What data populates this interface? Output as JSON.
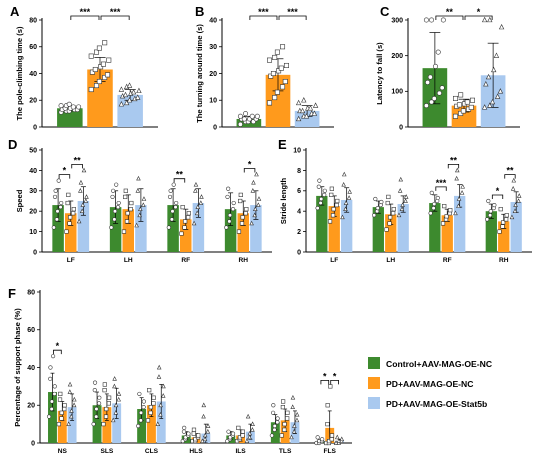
{
  "colors": {
    "control": "#3d8a2e",
    "pd": "#ff9a1c",
    "stat5b": "#a9c9ef"
  },
  "legend": [
    {
      "label": "Control+AAV-MAG-OE-NC",
      "color": "#3d8a2e"
    },
    {
      "label": "PD+AAV-MAG-OE-NC",
      "color": "#ff9a1c"
    },
    {
      "label": "PD+AAV-MAG-OE-Stat5b",
      "color": "#a9c9ef"
    }
  ],
  "chart_data": [
    {
      "panel": "A",
      "type": "bar",
      "ylabel": "The pole-climbing time (s)",
      "ylim": [
        0,
        80
      ],
      "yticks": [
        0,
        20,
        40,
        60,
        80
      ],
      "categories": [
        ""
      ],
      "series": [
        {
          "name": "Control+AAV-MAG-OE-NC",
          "values": [
            14
          ],
          "errors": [
            2
          ],
          "points": [
            [
              11,
              12,
              12,
              13,
              13,
              13,
              14,
              14,
              15,
              15,
              16,
              16,
              17
            ]
          ]
        },
        {
          "name": "PD+AAV-MAG-OE-NC",
          "values": [
            43
          ],
          "errors": [
            9
          ],
          "points": [
            [
              28,
              31,
              34,
              37,
              39,
              41,
              43,
              45,
              47,
              50,
              53,
              56,
              59,
              63
            ]
          ]
        },
        {
          "name": "PD+AAV-MAG-OE-Stat5b",
          "values": [
            24
          ],
          "errors": [
            4
          ],
          "points": [
            [
              17,
              18,
              20,
              21,
              22,
              23,
              24,
              25,
              26,
              27,
              28,
              30,
              31
            ]
          ]
        }
      ],
      "significance": [
        {
          "pair": [
            0,
            1
          ],
          "label": "***"
        },
        {
          "pair": [
            1,
            2
          ],
          "label": "***"
        }
      ]
    },
    {
      "panel": "B",
      "type": "bar",
      "ylabel": "The turning around time (s)",
      "ylim": [
        0,
        40
      ],
      "yticks": [
        0,
        10,
        20,
        30,
        40
      ],
      "categories": [
        ""
      ],
      "series": [
        {
          "name": "Control+AAV-MAG-OE-NC",
          "values": [
            3
          ],
          "errors": [
            1
          ],
          "points": [
            [
              1,
              2,
              2,
              2,
              3,
              3,
              3,
              3,
              4,
              4,
              4,
              5
            ]
          ]
        },
        {
          "name": "PD+AAV-MAG-OE-NC",
          "values": [
            19.5
          ],
          "errors": [
            6
          ],
          "points": [
            [
              9,
              11,
              13,
              15,
              17,
              19,
              20,
              21,
              22,
              23,
              25,
              26,
              28,
              30
            ]
          ]
        },
        {
          "name": "PD+AAV-MAG-OE-Stat5b",
          "values": [
            6
          ],
          "errors": [
            2
          ],
          "points": [
            [
              3,
              4,
              4,
              5,
              5,
              6,
              6,
              7,
              7,
              8,
              9,
              10
            ]
          ]
        }
      ],
      "significance": [
        {
          "pair": [
            0,
            1
          ],
          "label": "***"
        },
        {
          "pair": [
            1,
            2
          ],
          "label": "***"
        }
      ]
    },
    {
      "panel": "C",
      "type": "bar",
      "ylabel": "Latency to fall (s)",
      "ylim": [
        0,
        300
      ],
      "yticks": [
        0,
        100,
        200,
        300
      ],
      "categories": [
        ""
      ],
      "series": [
        {
          "name": "Control+AAV-MAG-OE-NC",
          "values": [
            165
          ],
          "errors": [
            100
          ],
          "points": [
            [
              60,
              70,
              80,
              95,
              110,
              125,
              140,
              170,
              210,
              300,
              300,
              300
            ]
          ]
        },
        {
          "name": "PD+AAV-MAG-OE-NC",
          "values": [
            60
          ],
          "errors": [
            18
          ],
          "points": [
            [
              30,
              38,
              45,
              50,
              55,
              58,
              62,
              65,
              70,
              75,
              80,
              90
            ]
          ]
        },
        {
          "name": "PD+AAV-MAG-OE-Stat5b",
          "values": [
            145
          ],
          "errors": [
            90
          ],
          "points": [
            [
              55,
              60,
              70,
              85,
              100,
              120,
              140,
              160,
              200,
              280,
              300,
              300
            ]
          ]
        }
      ],
      "significance": [
        {
          "pair": [
            0,
            1
          ],
          "label": "**"
        },
        {
          "pair": [
            1,
            2
          ],
          "label": "*"
        }
      ]
    },
    {
      "panel": "D",
      "type": "bar",
      "ylabel": "Speed",
      "ylim": [
        0,
        50
      ],
      "yticks": [
        0,
        10,
        20,
        30,
        40,
        50
      ],
      "categories": [
        "LF",
        "LH",
        "RF",
        "RH"
      ],
      "series": [
        {
          "name": "Control+AAV-MAG-OE-NC",
          "values": [
            23,
            22,
            23,
            21
          ],
          "errors": [
            8,
            8,
            8,
            8
          ],
          "points": [
            [
              12,
              16,
              20,
              22,
              24,
              27,
              30,
              35
            ],
            [
              12,
              16,
              20,
              22,
              24,
              27,
              30,
              33
            ],
            [
              12,
              16,
              20,
              22,
              24,
              27,
              30,
              33
            ],
            [
              12,
              15,
              18,
              21,
              24,
              27,
              31
            ]
          ]
        },
        {
          "name": "PD+AAV-MAG-OE-NC",
          "values": [
            19,
            21,
            16,
            19
          ],
          "errors": [
            6,
            7,
            5,
            6
          ],
          "points": [
            [
              10,
              14,
              17,
              19,
              21,
              24,
              28
            ],
            [
              10,
              15,
              19,
              21,
              24,
              27,
              30
            ],
            [
              9,
              12,
              15,
              17,
              19,
              22
            ],
            [
              10,
              14,
              17,
              19,
              21,
              25,
              28
            ]
          ]
        },
        {
          "name": "PD+AAV-MAG-OE-Stat5b",
          "values": [
            25,
            23,
            24,
            23
          ],
          "errors": [
            7,
            8,
            7,
            7
          ],
          "points": [
            [
              15,
              20,
              23,
              25,
              27,
              30,
              34,
              40
            ],
            [
              13,
              18,
              21,
              23,
              26,
              30,
              36
            ],
            [
              14,
              19,
              22,
              24,
              27,
              30,
              33
            ],
            [
              14,
              18,
              21,
              23,
              26,
              30,
              34,
              38
            ]
          ]
        }
      ],
      "significance": [
        {
          "category": 0,
          "pair": [
            0,
            1
          ],
          "label": "*"
        },
        {
          "category": 0,
          "pair": [
            1,
            2
          ],
          "label": "**"
        },
        {
          "category": 2,
          "pair": [
            0,
            1
          ],
          "label": "**"
        },
        {
          "category": 3,
          "pair": [
            1,
            2
          ],
          "label": "*"
        }
      ]
    },
    {
      "panel": "E",
      "type": "bar",
      "ylabel": "Stride length",
      "ylim": [
        0,
        10
      ],
      "yticks": [
        0,
        2,
        4,
        6,
        8,
        10
      ],
      "categories": [
        "LF",
        "LH",
        "RF",
        "RH"
      ],
      "series": [
        {
          "name": "Control+AAV-MAG-OE-NC",
          "values": [
            5.5,
            4.4,
            4.8,
            4.0
          ],
          "errors": [
            0.9,
            0.6,
            0.8,
            0.7
          ],
          "points": [
            [
              4.3,
              4.8,
              5.2,
              5.6,
              6.0,
              6.4,
              7.0
            ],
            [
              3.6,
              4.0,
              4.3,
              4.6,
              4.9,
              5.2
            ],
            [
              3.8,
              4.3,
              4.7,
              5.0,
              5.3,
              5.8
            ],
            [
              3.2,
              3.6,
              4.0,
              4.3,
              4.6,
              5.0
            ]
          ]
        },
        {
          "name": "PD+AAV-MAG-OE-NC",
          "values": [
            4.5,
            3.7,
            3.6,
            3.0
          ],
          "errors": [
            1.0,
            1.0,
            0.6,
            0.7
          ],
          "points": [
            [
              3.0,
              3.6,
              4.2,
              4.6,
              5.0,
              5.6,
              6.2
            ],
            [
              2.2,
              2.8,
              3.4,
              3.8,
              4.2,
              4.8,
              5.4
            ],
            [
              2.8,
              3.2,
              3.5,
              3.8,
              4.1,
              4.5
            ],
            [
              2.0,
              2.5,
              2.9,
              3.2,
              3.6,
              4.2
            ]
          ]
        },
        {
          "name": "PD+AAV-MAG-OE-Stat5b",
          "values": [
            5.1,
            4.7,
            5.5,
            4.9
          ],
          "errors": [
            1.2,
            0.8,
            1.1,
            1.0
          ],
          "points": [
            [
              3.4,
              4.2,
              4.8,
              5.3,
              5.9,
              6.6,
              7.6
            ],
            [
              3.6,
              4.2,
              4.6,
              5.0,
              5.4,
              6.0,
              7.1
            ],
            [
              3.8,
              4.5,
              5.2,
              5.8,
              6.4,
              7.2,
              8.0
            ],
            [
              3.4,
              4.0,
              4.6,
              5.0,
              5.5,
              6.2,
              7.0
            ]
          ]
        }
      ],
      "significance": [
        {
          "category": 2,
          "pair": [
            0,
            1
          ],
          "label": "***"
        },
        {
          "category": 2,
          "pair": [
            1,
            2
          ],
          "label": "**"
        },
        {
          "category": 3,
          "pair": [
            0,
            1
          ],
          "label": "*"
        },
        {
          "category": 3,
          "pair": [
            1,
            2
          ],
          "label": "**"
        }
      ]
    },
    {
      "panel": "F",
      "type": "bar",
      "ylabel": "Percentage of support phase (%)",
      "ylim": [
        0,
        80
      ],
      "yticks": [
        0,
        20,
        40,
        60,
        80
      ],
      "categories": [
        "NS",
        "SLS",
        "CLS",
        "HLS",
        "ILS",
        "TLS",
        "FLS"
      ],
      "series": [
        {
          "name": "Control+AAV-MAG-OE-NC",
          "values": [
            27,
            20,
            18,
            4,
            4,
            11,
            1
          ],
          "errors": [
            10,
            7,
            6,
            2,
            2,
            4,
            1
          ],
          "points": [
            [
              14,
              18,
              22,
              26,
              30,
              34,
              40,
              46
            ],
            [
              10,
              14,
              18,
              21,
              24,
              28,
              32
            ],
            [
              9,
              12,
              16,
              19,
              22,
              26
            ],
            [
              1,
              2,
              3,
              4,
              5,
              6,
              8
            ],
            [
              1,
              2,
              3,
              4,
              5,
              6
            ],
            [
              4,
              7,
              9,
              11,
              13,
              16,
              20
            ],
            [
              0,
              0,
              1,
              1,
              2,
              3
            ]
          ]
        },
        {
          "name": "PD+AAV-MAG-OE-NC",
          "values": [
            17,
            19,
            20,
            3,
            4,
            12,
            8
          ],
          "errors": [
            5,
            7,
            6,
            2,
            3,
            6,
            9
          ],
          "points": [
            [
              10,
              13,
              16,
              18,
              20,
              23,
              26
            ],
            [
              10,
              14,
              18,
              21,
              24,
              28,
              31
            ],
            [
              12,
              16,
              19,
              21,
              24,
              28
            ],
            [
              1,
              1,
              2,
              3,
              4,
              5,
              7
            ],
            [
              1,
              2,
              3,
              4,
              6,
              8
            ],
            [
              4,
              7,
              10,
              13,
              16,
              19,
              22
            ],
            [
              0,
              0,
              1,
              2,
              4,
              10,
              20,
              30
            ]
          ]
        },
        {
          "name": "PD+AAV-MAG-OE-Stat5b",
          "values": [
            19,
            21,
            22,
            5,
            6,
            11,
            1
          ],
          "errors": [
            7,
            8,
            9,
            5,
            4,
            6,
            1
          ],
          "points": [
            [
              10,
              14,
              17,
              20,
              23,
              27,
              31
            ],
            [
              12,
              16,
              20,
              23,
              26,
              30,
              34
            ],
            [
              10,
              15,
              20,
              25,
              30,
              35,
              40
            ],
            [
              1,
              2,
              4,
              6,
              9,
              14,
              20
            ],
            [
              1,
              3,
              5,
              7,
              10,
              14
            ],
            [
              3,
              6,
              9,
              12,
              15,
              19,
              24
            ],
            [
              0,
              0,
              1,
              1,
              2,
              3
            ]
          ]
        }
      ],
      "significance": [
        {
          "category": 0,
          "pair": [
            0,
            1
          ],
          "label": "*"
        },
        {
          "category": 6,
          "pair": [
            0,
            1
          ],
          "label": "*"
        },
        {
          "category": 6,
          "pair": [
            1,
            2
          ],
          "label": "*"
        }
      ]
    }
  ]
}
